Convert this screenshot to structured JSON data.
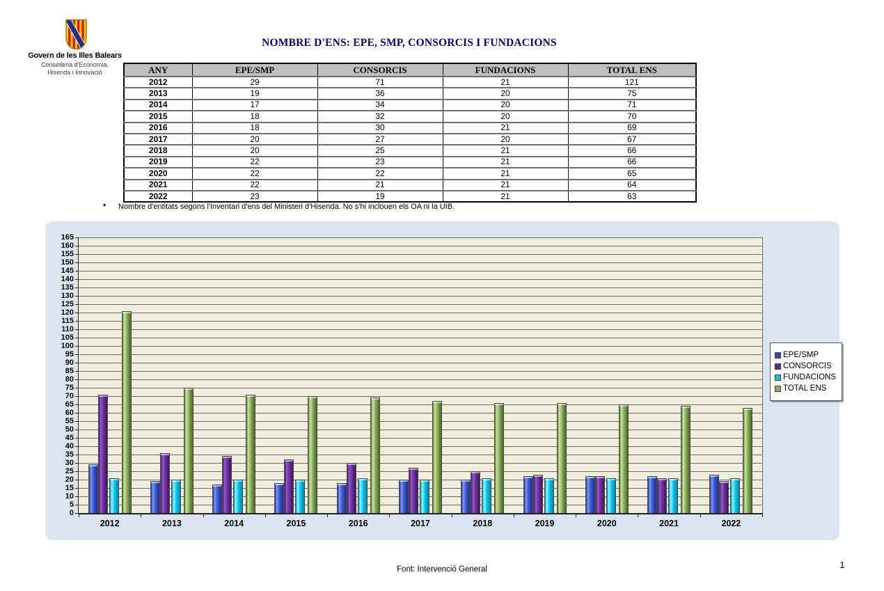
{
  "header": {
    "org_name": "Govern de les Illes Balears",
    "org_dept_line1": "Conselleria d'Economia,",
    "org_dept_line2": "Hisenda i Innovació",
    "title": "NOMBRE D'ENS: EPE, SMP, CONSORCIS I FUNDACIONS"
  },
  "table": {
    "columns": [
      "ANY",
      "EPE/SMP",
      "CONSORCIS",
      "FUNDACIONS",
      "TOTAL ENS"
    ],
    "rows": [
      [
        "2012",
        "29",
        "71",
        "21",
        "121"
      ],
      [
        "2013",
        "19",
        "36",
        "20",
        "75"
      ],
      [
        "2014",
        "17",
        "34",
        "20",
        "71"
      ],
      [
        "2015",
        "18",
        "32",
        "20",
        "70"
      ],
      [
        "2016",
        "18",
        "30",
        "21",
        "69"
      ],
      [
        "2017",
        "20",
        "27",
        "20",
        "67"
      ],
      [
        "2018",
        "20",
        "25",
        "21",
        "66"
      ],
      [
        "2019",
        "22",
        "23",
        "21",
        "66"
      ],
      [
        "2020",
        "22",
        "22",
        "21",
        "65"
      ],
      [
        "2021",
        "22",
        "21",
        "21",
        "64"
      ],
      [
        "2022",
        "23",
        "19",
        "21",
        "63"
      ]
    ]
  },
  "footnote": {
    "marker": "*",
    "text": "Nombre d'entitats segons l'Inventari d'ens del Ministeri d'Hisenda. No s'hi inclouen els OA ni la UIB."
  },
  "chart_data": {
    "type": "bar",
    "categories": [
      "2012",
      "2013",
      "2014",
      "2015",
      "2016",
      "2017",
      "2018",
      "2019",
      "2020",
      "2021",
      "2022"
    ],
    "series": [
      {
        "name": "EPE/SMP",
        "color": "#3347B8",
        "values": [
          29,
          19,
          17,
          18,
          18,
          20,
          20,
          22,
          22,
          22,
          23
        ]
      },
      {
        "name": "CONSORCIS",
        "color": "#5C2D8E",
        "values": [
          71,
          36,
          34,
          32,
          30,
          27,
          25,
          23,
          22,
          21,
          19
        ]
      },
      {
        "name": "FUNDACIONS",
        "color": "#00C6EE",
        "values": [
          21,
          20,
          20,
          20,
          21,
          20,
          21,
          21,
          21,
          21,
          21
        ]
      },
      {
        "name": "TOTAL ENS",
        "color": "#8CA86A",
        "values": [
          121,
          75,
          71,
          70,
          69,
          67,
          66,
          66,
          65,
          64,
          63
        ]
      }
    ],
    "title": "",
    "xlabel": "",
    "ylabel": "",
    "ylim": [
      0,
      165
    ],
    "ytick_step": 5,
    "grid": true,
    "legend_position": "right",
    "colors": {
      "panel_bg": "#DBE5F1",
      "plot_bg": "#F1EEDE",
      "title_text": "#000080"
    }
  },
  "footer": {
    "source_text": "Font: Intervenció General",
    "page_number": "1"
  }
}
